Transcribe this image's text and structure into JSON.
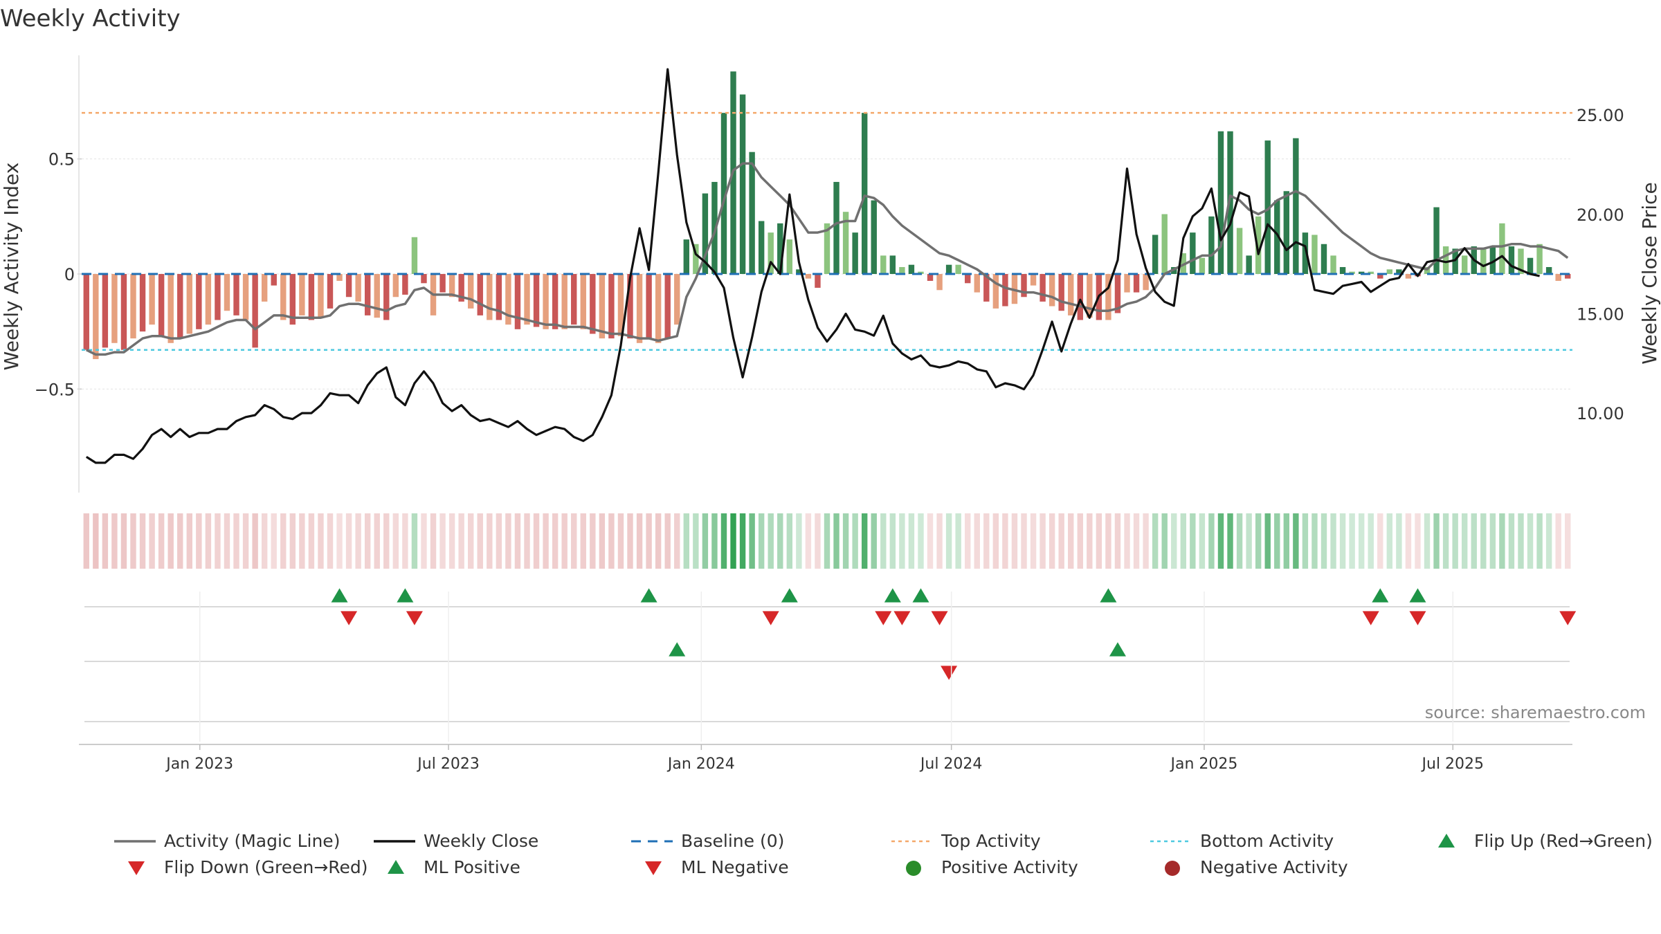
{
  "chart_data": {
    "type": "bar+line",
    "title": "Weekly Activity",
    "ylabel_left": "Weekly Activity Index",
    "ylabel_right": "Weekly Close Price",
    "left_axis": {
      "ylim": [
        -0.95,
        0.95
      ],
      "ticks": [
        -0.5,
        0,
        0.5
      ],
      "tick_labels": [
        "−0.5",
        "0",
        "0.5"
      ]
    },
    "right_axis": {
      "ylim": [
        6.0,
        28.0
      ],
      "ticks": [
        10,
        15,
        20,
        25
      ],
      "tick_labels": [
        "10.00",
        "15.00",
        "20.00",
        "25.00"
      ]
    },
    "x_start": "2022-10-07",
    "x_end": "2025-09-26",
    "x_ticks": [
      {
        "date": "2023-01-01",
        "label": "Jan 2023"
      },
      {
        "date": "2023-07-01",
        "label": "Jul 2023"
      },
      {
        "date": "2024-01-01",
        "label": "Jan 2024"
      },
      {
        "date": "2024-07-01",
        "label": "Jul 2024"
      },
      {
        "date": "2025-01-01",
        "label": "Jan 2025"
      },
      {
        "date": "2025-07-01",
        "label": "Jul 2025"
      }
    ],
    "top_activity": 0.7,
    "bottom_activity": -0.33,
    "baseline": 0,
    "activity": [
      -0.33,
      -0.37,
      -0.32,
      -0.3,
      -0.33,
      -0.28,
      -0.25,
      -0.22,
      -0.27,
      -0.3,
      -0.28,
      -0.26,
      -0.24,
      -0.22,
      -0.2,
      -0.16,
      -0.18,
      -0.2,
      -0.32,
      -0.12,
      -0.05,
      -0.2,
      -0.22,
      -0.18,
      -0.2,
      -0.19,
      -0.15,
      -0.03,
      -0.1,
      -0.12,
      -0.18,
      -0.19,
      -0.2,
      -0.1,
      -0.09,
      0.16,
      -0.04,
      -0.18,
      -0.08,
      -0.1,
      -0.12,
      -0.15,
      -0.18,
      -0.2,
      -0.2,
      -0.22,
      -0.24,
      -0.22,
      -0.23,
      -0.24,
      -0.24,
      -0.24,
      -0.22,
      -0.24,
      -0.26,
      -0.28,
      -0.28,
      -0.27,
      -0.28,
      -0.3,
      -0.28,
      -0.3,
      -0.28,
      -0.22,
      0.15,
      0.13,
      0.35,
      0.4,
      0.7,
      0.88,
      0.78,
      0.53,
      0.23,
      0.18,
      0.22,
      0.15,
      0.02,
      -0.02,
      -0.06,
      0.22,
      0.4,
      0.27,
      0.18,
      0.7,
      0.32,
      0.08,
      0.08,
      0.03,
      0.04,
      0.01,
      -0.03,
      -0.07,
      0.04,
      0.04,
      -0.04,
      -0.08,
      -0.12,
      -0.15,
      -0.14,
      -0.13,
      -0.1,
      -0.05,
      -0.12,
      -0.14,
      -0.16,
      -0.18,
      -0.2,
      -0.19,
      -0.2,
      -0.2,
      -0.17,
      -0.08,
      -0.08,
      -0.07,
      0.17,
      0.26,
      0.03,
      0.09,
      0.18,
      0.07,
      0.25,
      0.62,
      0.62,
      0.2,
      0.08,
      0.25,
      0.58,
      0.32,
      0.36,
      0.59,
      0.18,
      0.17,
      0.13,
      0.08,
      0.03,
      0.01,
      0.01,
      0.01,
      -0.02,
      0.02,
      0.02,
      -0.02,
      -0.01,
      0.03,
      0.29,
      0.12,
      0.11,
      0.08,
      0.12,
      0.11,
      0.12,
      0.22,
      0.12,
      0.11,
      0.07,
      0.13,
      0.03,
      -0.03,
      -0.02
    ],
    "magic_line": [
      -0.33,
      -0.35,
      -0.35,
      -0.34,
      -0.34,
      -0.31,
      -0.28,
      -0.27,
      -0.27,
      -0.28,
      -0.28,
      -0.27,
      -0.26,
      -0.25,
      -0.23,
      -0.21,
      -0.2,
      -0.2,
      -0.24,
      -0.21,
      -0.18,
      -0.18,
      -0.19,
      -0.19,
      -0.19,
      -0.19,
      -0.18,
      -0.14,
      -0.13,
      -0.13,
      -0.14,
      -0.15,
      -0.16,
      -0.14,
      -0.13,
      -0.07,
      -0.06,
      -0.09,
      -0.09,
      -0.09,
      -0.1,
      -0.11,
      -0.13,
      -0.15,
      -0.16,
      -0.18,
      -0.19,
      -0.2,
      -0.21,
      -0.22,
      -0.22,
      -0.23,
      -0.23,
      -0.23,
      -0.24,
      -0.25,
      -0.26,
      -0.26,
      -0.27,
      -0.28,
      -0.28,
      -0.29,
      -0.28,
      -0.27,
      -0.1,
      -0.02,
      0.08,
      0.18,
      0.32,
      0.45,
      0.48,
      0.48,
      0.42,
      0.38,
      0.34,
      0.3,
      0.24,
      0.18,
      0.18,
      0.19,
      0.22,
      0.23,
      0.23,
      0.34,
      0.33,
      0.3,
      0.25,
      0.21,
      0.18,
      0.15,
      0.12,
      0.09,
      0.08,
      0.06,
      0.04,
      0.02,
      -0.01,
      -0.04,
      -0.06,
      -0.07,
      -0.08,
      -0.08,
      -0.09,
      -0.1,
      -0.12,
      -0.13,
      -0.14,
      -0.15,
      -0.16,
      -0.16,
      -0.15,
      -0.13,
      -0.12,
      -0.1,
      -0.06,
      0.0,
      0.02,
      0.04,
      0.06,
      0.08,
      0.08,
      0.12,
      0.34,
      0.32,
      0.28,
      0.26,
      0.28,
      0.32,
      0.34,
      0.36,
      0.34,
      0.3,
      0.26,
      0.22,
      0.18,
      0.15,
      0.12,
      0.09,
      0.07,
      0.06,
      0.05,
      0.04,
      0.03,
      0.02,
      0.06,
      0.08,
      0.1,
      0.11,
      0.11,
      0.11,
      0.12,
      0.12,
      0.13,
      0.13,
      0.12,
      0.12,
      0.11,
      0.1,
      0.07
    ],
    "close": [
      7.8,
      7.5,
      7.5,
      7.9,
      7.9,
      7.7,
      8.2,
      8.9,
      9.2,
      8.8,
      9.2,
      8.8,
      9.0,
      9.0,
      9.2,
      9.2,
      9.6,
      9.8,
      9.9,
      10.4,
      10.2,
      9.8,
      9.7,
      10.0,
      10.0,
      10.4,
      11.0,
      10.9,
      10.9,
      10.5,
      11.4,
      12.0,
      12.3,
      10.8,
      10.4,
      11.5,
      12.1,
      11.5,
      10.5,
      10.1,
      10.4,
      9.9,
      9.6,
      9.7,
      9.5,
      9.3,
      9.6,
      9.2,
      8.9,
      9.1,
      9.3,
      9.2,
      8.8,
      8.6,
      8.9,
      9.8,
      10.9,
      13.4,
      16.8,
      19.3,
      17.2,
      22.1,
      27.3,
      23.0,
      19.6,
      18.0,
      17.6,
      17.1,
      16.3,
      13.8,
      11.8,
      13.8,
      16.1,
      17.6,
      17.0,
      21.0,
      17.6,
      15.7,
      14.3,
      13.6,
      14.2,
      15.0,
      14.2,
      14.1,
      13.9,
      14.9,
      13.5,
      13.0,
      12.7,
      12.9,
      12.4,
      12.3,
      12.4,
      12.6,
      12.5,
      12.2,
      12.1,
      11.3,
      11.5,
      11.4,
      11.2,
      11.9,
      13.2,
      14.6,
      13.1,
      14.5,
      15.7,
      14.8,
      15.9,
      16.3,
      17.7,
      22.3,
      19.0,
      17.3,
      16.1,
      15.6,
      15.4,
      18.8,
      19.9,
      20.3,
      21.3,
      18.7,
      19.5,
      21.1,
      20.9,
      18.0,
      19.5,
      19.0,
      18.2,
      18.6,
      18.4,
      16.2,
      16.1,
      16.0,
      16.4,
      16.5,
      16.6,
      16.1,
      16.4,
      16.7,
      16.8,
      17.5,
      16.9,
      17.6,
      17.7,
      17.6,
      17.7,
      18.3,
      17.7,
      17.4,
      17.6,
      17.9,
      17.4,
      17.2,
      17.0,
      16.9
    ],
    "flip_up_weeks": [
      27,
      34,
      60,
      75,
      86,
      89,
      109,
      138,
      142
    ],
    "flip_down_weeks": [
      28,
      35,
      73,
      85,
      87,
      91,
      137,
      142,
      158
    ],
    "ml_positive_weeks": [
      63,
      110
    ],
    "ml_negative_weeks": [
      92
    ],
    "source_note": "source: sharemaestro.com",
    "legend": [
      {
        "key": "magic",
        "label": "Activity (Magic Line)"
      },
      {
        "key": "close",
        "label": "Weekly Close"
      },
      {
        "key": "baseline",
        "label": "Baseline (0)"
      },
      {
        "key": "top",
        "label": "Top Activity"
      },
      {
        "key": "bottom",
        "label": "Bottom Activity"
      },
      {
        "key": "flipup",
        "label": "Flip Up (Red→Green)"
      },
      {
        "key": "flipdown",
        "label": "Flip Down (Green→Red)"
      },
      {
        "key": "mlpos",
        "label": "ML Positive"
      },
      {
        "key": "mlneg",
        "label": "ML Negative"
      },
      {
        "key": "posact",
        "label": "Positive Activity"
      },
      {
        "key": "negact",
        "label": "Negative Activity"
      }
    ],
    "colors": {
      "pos_dark": "#2e7d4f",
      "pos_light": "#8cc47e",
      "neg_dark": "#c95757",
      "neg_light": "#e6a07e",
      "magic": "#707070",
      "close": "#111111",
      "baseline": "#1f6fb5",
      "top": "#f4a86a",
      "bottom": "#4ec9e0",
      "flip_up": "#1e9447",
      "flip_down": "#d62728",
      "pos_dot": "#2a8c2a",
      "neg_dot": "#a52a2a",
      "text": "#333333",
      "grid": "#e6e6e6"
    }
  }
}
